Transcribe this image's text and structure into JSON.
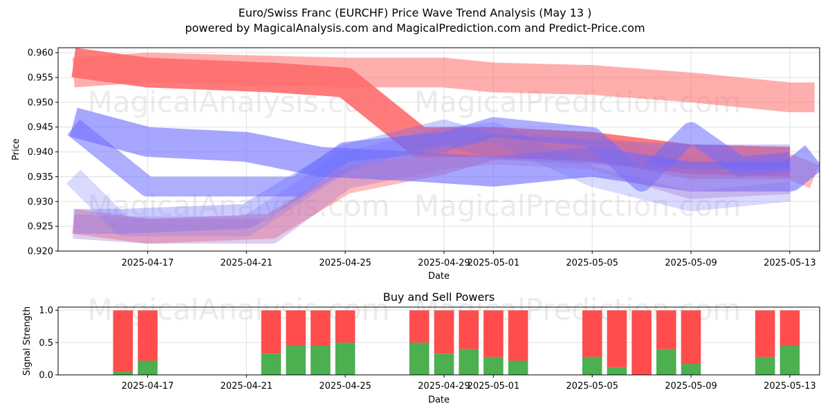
{
  "header": {
    "title": "Euro/Swiss Franc (EURCHF) Price Wave Trend Analysis (May 13 )",
    "subtitle": "powered by MagicalAnalysis.com and MagicalPrediction.com and Predict-Price.com"
  },
  "watermarks": [
    "MagicalAnalysis.com",
    "MagicalPrediction.com"
  ],
  "colors": {
    "red_band": "#ff6b6b",
    "blue_band": "#6b6bff",
    "buy": "#4caf50",
    "sell": "#ff4d4d",
    "grid": "#e0e0e0"
  },
  "chart_data": [
    {
      "type": "line",
      "title": "",
      "xlabel": "Date",
      "ylabel": "Price",
      "xlim": [
        "2025-04-13T09:00",
        "2025-05-14T05:00"
      ],
      "ylim": [
        0.92,
        0.961
      ],
      "yticks": [
        0.92,
        0.925,
        0.93,
        0.935,
        0.94,
        0.945,
        0.95,
        0.955,
        0.96
      ],
      "ytick_labels": [
        "0.920",
        "0.925",
        "0.930",
        "0.935",
        "0.940",
        "0.945",
        "0.950",
        "0.955",
        "0.960"
      ],
      "xticks": [
        "2025-04-17",
        "2025-04-21",
        "2025-04-25",
        "2025-04-29",
        "2025-05-01",
        "2025-05-05",
        "2025-05-09",
        "2025-05-13"
      ],
      "xtick_labels": [
        "2025-04-17",
        "2025-04-21",
        "2025-04-25",
        "2025-04-29",
        "2025-05-01",
        "2025-05-05",
        "2025-05-09",
        "2025-05-13"
      ],
      "grid": true,
      "series": [
        {
          "color": "#ff6b6b",
          "opacity": 0.9,
          "width": 0.006,
          "x": [
            "2025-04-14",
            "2025-04-17",
            "2025-04-22",
            "2025-04-25",
            "2025-04-28",
            "2025-05-01",
            "2025-05-05",
            "2025-05-09",
            "2025-05-13"
          ],
          "y": [
            0.958,
            0.956,
            0.955,
            0.954,
            0.942,
            0.942,
            0.941,
            0.9385,
            0.938
          ]
        },
        {
          "color": "#ff6b6b",
          "opacity": 0.55,
          "width": 0.006,
          "x": [
            "2025-04-14",
            "2025-04-17",
            "2025-04-21",
            "2025-04-25",
            "2025-04-29",
            "2025-05-01",
            "2025-05-05",
            "2025-05-09",
            "2025-05-13",
            "2025-05-14"
          ],
          "y": [
            0.956,
            0.957,
            0.9565,
            0.956,
            0.956,
            0.955,
            0.9545,
            0.953,
            0.951,
            0.951
          ]
        },
        {
          "color": "#ff6b6b",
          "opacity": 0.45,
          "width": 0.005,
          "x": [
            "2025-04-14",
            "2025-04-17",
            "2025-04-22",
            "2025-04-25",
            "2025-04-29",
            "2025-05-01",
            "2025-05-05",
            "2025-05-09",
            "2025-05-13",
            "2025-05-14"
          ],
          "y": [
            0.926,
            0.924,
            0.925,
            0.934,
            0.938,
            0.941,
            0.941,
            0.937,
            0.937,
            0.935
          ]
        },
        {
          "color": "#6b6bff",
          "opacity": 0.6,
          "width": 0.006,
          "x": [
            "2025-04-14",
            "2025-04-17",
            "2025-04-21",
            "2025-04-24",
            "2025-04-28",
            "2025-05-01",
            "2025-05-05",
            "2025-05-09",
            "2025-05-13",
            "2025-05-14"
          ],
          "y": [
            0.946,
            0.942,
            0.941,
            0.938,
            0.937,
            0.936,
            0.938,
            0.935,
            0.935,
            0.939
          ]
        },
        {
          "color": "#6b6bff",
          "opacity": 0.55,
          "width": 0.004,
          "x": [
            "2025-04-14",
            "2025-04-17",
            "2025-04-21",
            "2025-04-23",
            "2025-04-25",
            "2025-04-29",
            "2025-05-01",
            "2025-05-05",
            "2025-05-07",
            "2025-05-09",
            "2025-05-11",
            "2025-05-13"
          ],
          "y": [
            0.945,
            0.933,
            0.933,
            0.933,
            0.94,
            0.942,
            0.945,
            0.943,
            0.934,
            0.944,
            0.937,
            0.938
          ]
        },
        {
          "color": "#6b6bff",
          "opacity": 0.35,
          "width": 0.005,
          "x": [
            "2025-04-14",
            "2025-04-16",
            "2025-04-21",
            "2025-04-25",
            "2025-04-29",
            "2025-05-01",
            "2025-05-05",
            "2025-05-09",
            "2025-05-13"
          ],
          "y": [
            0.926,
            0.926,
            0.927,
            0.939,
            0.944,
            0.941,
            0.94,
            0.939,
            0.939
          ]
        },
        {
          "color": "#6b6bff",
          "opacity": 0.25,
          "width": 0.004,
          "x": [
            "2025-04-14",
            "2025-04-16",
            "2025-04-21",
            "2025-04-25",
            "2025-04-29",
            "2025-05-01",
            "2025-05-05",
            "2025-05-09",
            "2025-05-13"
          ],
          "y": [
            0.935,
            0.925,
            0.925,
            0.938,
            0.943,
            0.944,
            0.935,
            0.93,
            0.932
          ]
        },
        {
          "color": "#a070d0",
          "opacity": 0.35,
          "width": 0.005,
          "x": [
            "2025-04-14",
            "2025-04-17",
            "2025-04-22",
            "2025-04-25",
            "2025-04-29",
            "2025-05-01",
            "2025-05-05",
            "2025-05-09",
            "2025-05-13"
          ],
          "y": [
            0.925,
            0.924,
            0.924,
            0.935,
            0.939,
            0.94,
            0.939,
            0.933,
            0.934
          ]
        }
      ]
    },
    {
      "type": "bar",
      "title": "Buy and Sell Powers",
      "xlabel": "Date",
      "ylabel": "Signal Strength",
      "ylim": [
        0,
        1.05
      ],
      "yticks": [
        0.0,
        0.5,
        1.0
      ],
      "ytick_labels": [
        "0.0",
        "0.5",
        "1.0"
      ],
      "xticks": [
        "2025-04-17",
        "2025-04-21",
        "2025-04-25",
        "2025-04-29",
        "2025-05-01",
        "2025-05-05",
        "2025-05-09",
        "2025-05-13"
      ],
      "xtick_labels": [
        "2025-04-17",
        "2025-04-21",
        "2025-04-25",
        "2025-04-29",
        "2025-05-01",
        "2025-05-05",
        "2025-05-09",
        "2025-05-13"
      ],
      "grid": true,
      "categories": [
        "2025-04-16",
        "2025-04-17",
        "2025-04-22",
        "2025-04-23",
        "2025-04-24",
        "2025-04-25",
        "2025-04-28",
        "2025-04-29",
        "2025-04-30",
        "2025-05-01",
        "2025-05-02",
        "2025-05-05",
        "2025-05-06",
        "2025-05-07",
        "2025-05-08",
        "2025-05-09",
        "2025-05-12",
        "2025-05-13"
      ],
      "series": [
        {
          "name": "Buy",
          "values": [
            0.05,
            0.22,
            0.33,
            0.45,
            0.45,
            0.5,
            0.5,
            0.33,
            0.4,
            0.28,
            0.22,
            0.28,
            0.12,
            0.0,
            0.4,
            0.17,
            0.28,
            0.45
          ]
        },
        {
          "name": "Sell",
          "values": [
            0.95,
            0.78,
            0.67,
            0.55,
            0.55,
            0.5,
            0.5,
            0.67,
            0.6,
            0.72,
            0.78,
            0.72,
            0.88,
            1.0,
            0.6,
            0.83,
            0.72,
            0.55
          ]
        }
      ]
    }
  ]
}
